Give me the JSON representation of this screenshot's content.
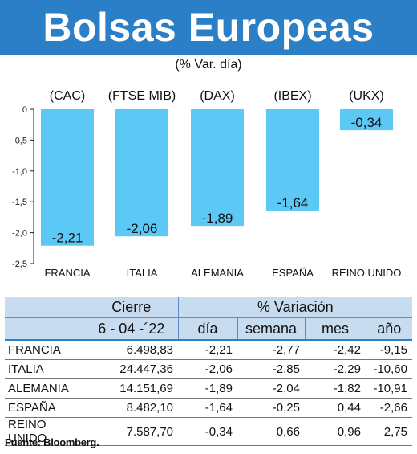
{
  "title": "Bolsas Europeas",
  "subtitle": "(% Var. día)",
  "chart_data": {
    "type": "bar",
    "codes": [
      "(CAC)",
      "(FTSE MIB)",
      "(DAX)",
      "(IBEX)",
      "(UKX)"
    ],
    "categories": [
      "FRANCIA",
      "ITALIA",
      "ALEMANIA",
      "ESPAÑA",
      "REINO UNIDO"
    ],
    "values": [
      -2.21,
      -2.06,
      -1.89,
      -1.64,
      -0.34
    ],
    "value_labels": [
      "-2,21",
      "-2,06",
      "-1,89",
      "-1,64",
      "-0,34"
    ],
    "yticks": [
      "0",
      "-0,5",
      "-1,0",
      "-1,5",
      "-2,0",
      "-2,5"
    ],
    "ytick_values": [
      0,
      -0.5,
      -1.0,
      -1.5,
      -2.0,
      -2.5
    ],
    "ylim": [
      -2.5,
      0
    ],
    "bar_color": "#5bc8f5",
    "grid": false
  },
  "table": {
    "head1": [
      "Cierre",
      "% Variación"
    ],
    "head2": [
      "6 - 04 -´22",
      "día",
      "semana",
      "mes",
      "año"
    ],
    "rows": [
      {
        "name": "FRANCIA",
        "cierre": "6.498,83",
        "dia": "-2,21",
        "semana": "-2,77",
        "mes": "-2,42",
        "anio": "-9,15"
      },
      {
        "name": "ITALIA",
        "cierre": "24.447,36",
        "dia": "-2,06",
        "semana": "-2,85",
        "mes": "-2,29",
        "anio": "-10,60"
      },
      {
        "name": "ALEMANIA",
        "cierre": "14.151,69",
        "dia": "-1,89",
        "semana": "-2,04",
        "mes": "-1,82",
        "anio": "-10,91"
      },
      {
        "name": "ESPAÑA",
        "cierre": "8.482,10",
        "dia": "-1,64",
        "semana": "-0,25",
        "mes": "0,44",
        "anio": "-2,66"
      },
      {
        "name": "REINO UNIDO",
        "cierre": "7.587,70",
        "dia": "-0,34",
        "semana": "0,66",
        "mes": "0,96",
        "anio": "2,75"
      }
    ]
  },
  "source": "Fuente: Bloomberg."
}
